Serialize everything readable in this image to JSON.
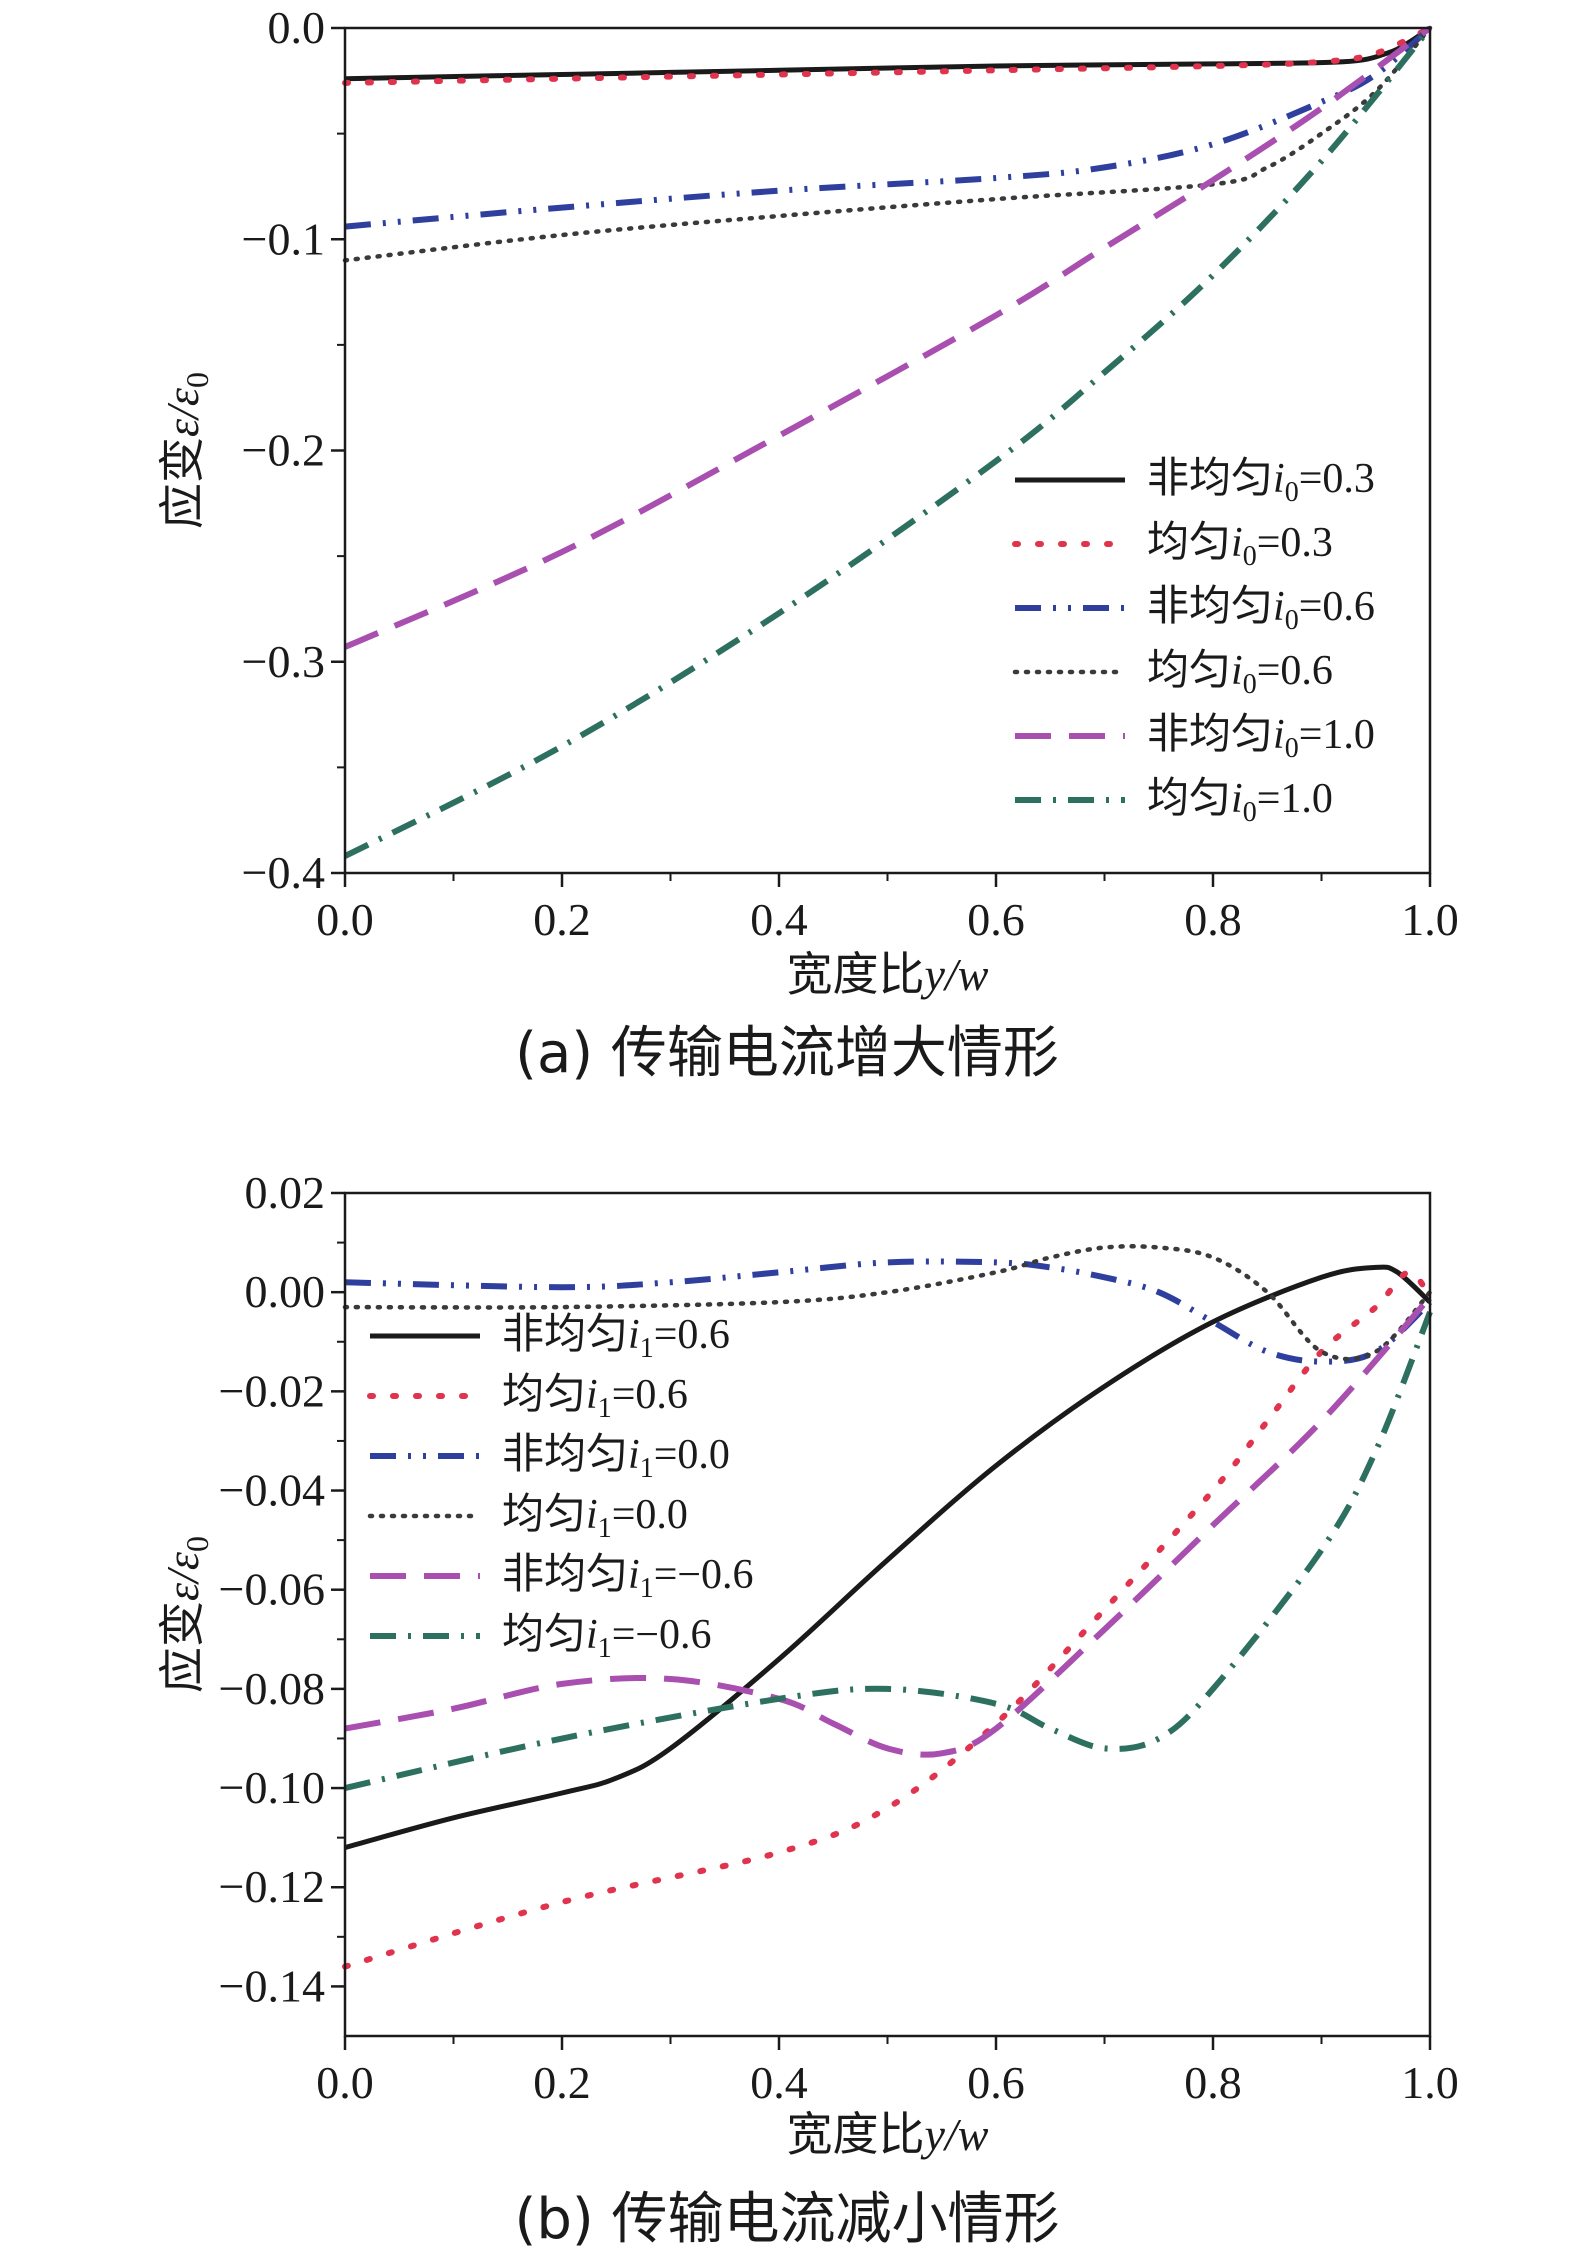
{
  "chart_data": [
    {
      "type": "line",
      "caption": "(a) 传输电流增大情形",
      "xlabel": {
        "text": "宽度比",
        "var": "y/w"
      },
      "ylabel": {
        "text": "应变",
        "var": "ε/ε",
        "sub": "0"
      },
      "xlim": [
        0.0,
        1.0
      ],
      "ylim": [
        -0.4,
        0.0
      ],
      "xticks": [
        "0.0",
        "0.2",
        "0.4",
        "0.6",
        "0.8",
        "1.0"
      ],
      "yticks": [
        "0.0",
        "−0.1",
        "−0.2",
        "−0.3",
        "−0.4"
      ],
      "ytick_values": [
        0.0,
        -0.1,
        -0.2,
        -0.3,
        -0.4
      ],
      "legend_position": "lower-right",
      "series": [
        {
          "name": "非均匀i0=0.3",
          "legend": {
            "prefix": "非均匀",
            "var": "i",
            "sub": "0",
            "value": "=0.3"
          },
          "style": "solid",
          "color": "#1a1a1a",
          "x": [
            0.0,
            0.2,
            0.4,
            0.6,
            0.8,
            0.92,
            0.96,
            0.98,
            1.0
          ],
          "y": [
            -0.024,
            -0.022,
            -0.02,
            -0.018,
            -0.017,
            -0.016,
            -0.012,
            -0.007,
            0.0
          ]
        },
        {
          "name": "均匀i0=0.3",
          "legend": {
            "prefix": "均匀",
            "var": "i",
            "sub": "0",
            "value": "=0.3"
          },
          "style": "dot-sparse",
          "color": "#e0344e",
          "x": [
            0.0,
            0.2,
            0.4,
            0.6,
            0.8,
            0.9,
            0.95,
            1.0
          ],
          "y": [
            -0.026,
            -0.024,
            -0.022,
            -0.02,
            -0.018,
            -0.016,
            -0.012,
            0.0
          ]
        },
        {
          "name": "非均匀i0=0.6",
          "legend": {
            "prefix": "非均匀",
            "var": "i",
            "sub": "0",
            "value": "=0.6"
          },
          "style": "dashdotdot",
          "color": "#2f3f9e",
          "x": [
            0.0,
            0.2,
            0.4,
            0.6,
            0.7,
            0.8,
            0.9,
            0.95,
            1.0
          ],
          "y": [
            -0.094,
            -0.085,
            -0.077,
            -0.071,
            -0.066,
            -0.055,
            -0.035,
            -0.022,
            0.0
          ]
        },
        {
          "name": "均匀i0=0.6",
          "legend": {
            "prefix": "均匀",
            "var": "i",
            "sub": "0",
            "value": "=0.6"
          },
          "style": "dot-dense",
          "color": "#3a3a3a",
          "x": [
            0.0,
            0.2,
            0.4,
            0.6,
            0.8,
            0.85,
            0.9,
            0.95,
            1.0
          ],
          "y": [
            -0.11,
            -0.098,
            -0.089,
            -0.081,
            -0.074,
            -0.066,
            -0.05,
            -0.03,
            0.0
          ]
        },
        {
          "name": "非均匀i0=1.0",
          "legend": {
            "prefix": "非均匀",
            "var": "i",
            "sub": "0",
            "value": "=1.0"
          },
          "style": "dash-long",
          "color": "#a84fb0",
          "x": [
            0.0,
            0.2,
            0.4,
            0.6,
            0.7,
            0.8,
            0.9,
            1.0
          ],
          "y": [
            -0.293,
            -0.248,
            -0.193,
            -0.136,
            -0.104,
            -0.072,
            -0.038,
            0.0
          ]
        },
        {
          "name": "均匀i0=1.0",
          "legend": {
            "prefix": "均匀",
            "var": "i",
            "sub": "0",
            "value": "=1.0"
          },
          "style": "dashdot",
          "color": "#2e7060",
          "x": [
            0.0,
            0.2,
            0.4,
            0.6,
            0.7,
            0.8,
            0.9,
            1.0
          ],
          "y": [
            -0.392,
            -0.34,
            -0.277,
            -0.205,
            -0.163,
            -0.117,
            -0.063,
            0.0
          ]
        }
      ]
    },
    {
      "type": "line",
      "caption": "(b) 传输电流减小情形",
      "xlabel": {
        "text": "宽度比",
        "var": "y/w"
      },
      "ylabel": {
        "text": "应变",
        "var": "ε/ε",
        "sub": "0"
      },
      "xlim": [
        0.0,
        1.0
      ],
      "ylim": [
        -0.15,
        0.02
      ],
      "xticks": [
        "0.0",
        "0.2",
        "0.4",
        "0.6",
        "0.8",
        "1.0"
      ],
      "yticks": [
        "0.02",
        "0.00",
        "−0.02",
        "−0.04",
        "−0.06",
        "−0.08",
        "−0.10",
        "−0.12",
        "−0.14"
      ],
      "ytick_values": [
        0.02,
        0.0,
        -0.02,
        -0.04,
        -0.06,
        -0.08,
        -0.1,
        -0.12,
        -0.14
      ],
      "legend_position": "upper-left",
      "series": [
        {
          "name": "非均匀i1=0.6",
          "legend": {
            "prefix": "非均匀",
            "var": "i",
            "sub": "1",
            "value": "=0.6"
          },
          "style": "solid",
          "color": "#1a1a1a",
          "x": [
            0.0,
            0.1,
            0.2,
            0.25,
            0.3,
            0.4,
            0.5,
            0.6,
            0.7,
            0.8,
            0.9,
            0.95,
            0.97,
            1.0
          ],
          "y": [
            -0.112,
            -0.106,
            -0.101,
            -0.098,
            -0.092,
            -0.074,
            -0.054,
            -0.035,
            -0.019,
            -0.006,
            0.003,
            0.005,
            0.004,
            -0.002
          ]
        },
        {
          "name": "均匀i1=0.6",
          "legend": {
            "prefix": "均匀",
            "var": "i",
            "sub": "1",
            "value": "=0.6"
          },
          "style": "dot-sparse",
          "color": "#e0344e",
          "x": [
            0.0,
            0.2,
            0.4,
            0.5,
            0.6,
            0.7,
            0.8,
            0.85,
            0.9,
            0.95,
            0.98,
            1.0
          ],
          "y": [
            -0.136,
            -0.123,
            -0.113,
            -0.104,
            -0.087,
            -0.064,
            -0.04,
            -0.026,
            -0.012,
            -0.003,
            0.004,
            -0.001
          ]
        },
        {
          "name": "非均匀i1=0.0",
          "legend": {
            "prefix": "非均匀",
            "var": "i",
            "sub": "1",
            "value": "=0.0"
          },
          "style": "dashdotdot",
          "color": "#2f3f9e",
          "x": [
            0.0,
            0.2,
            0.3,
            0.4,
            0.5,
            0.6,
            0.65,
            0.7,
            0.75,
            0.8,
            0.85,
            0.9,
            0.95,
            1.0
          ],
          "y": [
            0.002,
            0.001,
            0.002,
            0.004,
            0.006,
            0.006,
            0.005,
            0.003,
            0.0,
            -0.006,
            -0.012,
            -0.014,
            -0.012,
            -0.002
          ]
        },
        {
          "name": "均匀i1=0.0",
          "legend": {
            "prefix": "均匀",
            "var": "i",
            "sub": "1",
            "value": "=0.0"
          },
          "style": "dot-dense",
          "color": "#3a3a3a",
          "x": [
            0.0,
            0.2,
            0.4,
            0.5,
            0.6,
            0.65,
            0.7,
            0.75,
            0.8,
            0.85,
            0.9,
            0.95,
            1.0
          ],
          "y": [
            -0.003,
            -0.003,
            -0.002,
            0.0,
            0.004,
            0.007,
            0.009,
            0.009,
            0.007,
            0.0,
            -0.012,
            -0.012,
            0.0
          ]
        },
        {
          "name": "非均匀i1=−0.6",
          "legend": {
            "prefix": "非均匀",
            "var": "i",
            "sub": "1",
            "value": "=−0.6"
          },
          "style": "dash-long",
          "color": "#a84fb0",
          "x": [
            0.0,
            0.1,
            0.2,
            0.3,
            0.4,
            0.45,
            0.5,
            0.55,
            0.6,
            0.7,
            0.8,
            0.9,
            1.0
          ],
          "y": [
            -0.088,
            -0.084,
            -0.079,
            -0.078,
            -0.082,
            -0.087,
            -0.092,
            -0.093,
            -0.088,
            -0.068,
            -0.047,
            -0.026,
            -0.001
          ]
        },
        {
          "name": "均匀i1=−0.6",
          "legend": {
            "prefix": "均匀",
            "var": "i",
            "sub": "1",
            "value": "=−0.6"
          },
          "style": "dashdot",
          "color": "#2e7060",
          "x": [
            0.0,
            0.2,
            0.4,
            0.5,
            0.6,
            0.65,
            0.7,
            0.75,
            0.8,
            0.9,
            0.95,
            1.0
          ],
          "y": [
            -0.1,
            -0.09,
            -0.082,
            -0.08,
            -0.083,
            -0.088,
            -0.092,
            -0.09,
            -0.08,
            -0.052,
            -0.032,
            -0.004
          ]
        }
      ]
    }
  ]
}
